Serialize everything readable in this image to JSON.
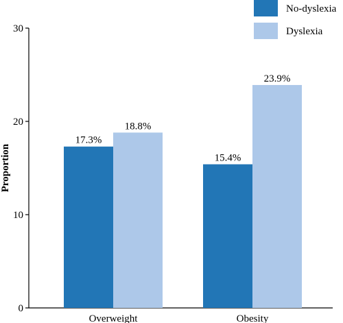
{
  "chart_data": {
    "type": "bar",
    "categories": [
      "Overweight",
      "Obesity"
    ],
    "series": [
      {
        "name": "No-dyslexia",
        "values": [
          17.3,
          15.4
        ],
        "labels": [
          "17.3%",
          "15.4%"
        ],
        "color": "#2276b6"
      },
      {
        "name": "Dyslexia",
        "values": [
          18.8,
          23.9
        ],
        "labels": [
          "18.8%",
          "23.9%"
        ],
        "color": "#adc8e9"
      }
    ],
    "ylabel": "Proportion",
    "xlabel": "",
    "ylim": [
      0,
      30
    ],
    "yticks": [
      "0",
      "10",
      "20",
      "30"
    ],
    "grid": false,
    "legend_position": "top-right"
  }
}
